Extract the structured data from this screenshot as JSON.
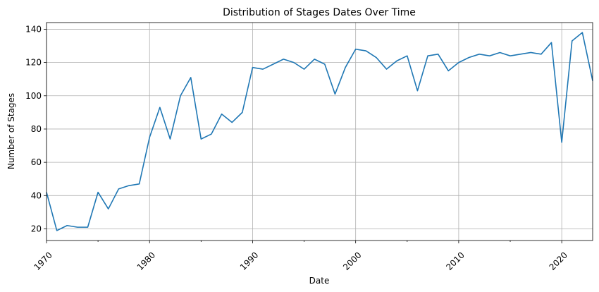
{
  "chart_data": {
    "type": "line",
    "title": "Distribution of Stages Dates Over Time",
    "xlabel": "Date",
    "ylabel": "Number of Stages",
    "xlim": [
      1970,
      2023
    ],
    "ylim": [
      13,
      144
    ],
    "grid": true,
    "x_ticks": [
      1970,
      1980,
      1990,
      2000,
      2010,
      2020
    ],
    "x_tick_labels": [
      "1970",
      "1980",
      "1990",
      "2000",
      "2010",
      "2020"
    ],
    "y_ticks": [
      20,
      40,
      60,
      80,
      100,
      120,
      140
    ],
    "y_tick_labels": [
      "20",
      "40",
      "60",
      "80",
      "100",
      "120",
      "140"
    ],
    "line_color": "#1f77b4",
    "series": [
      {
        "x": [
          1970,
          1971,
          1972,
          1973,
          1974,
          1975,
          1976,
          1977,
          1978,
          1979,
          1980,
          1981,
          1982,
          1983,
          1984,
          1985,
          1986,
          1987,
          1988,
          1989,
          1990,
          1991,
          1992,
          1993,
          1994,
          1995,
          1996,
          1997,
          1998,
          1999,
          2000,
          2001,
          2002,
          2003,
          2004,
          2005,
          2006,
          2007,
          2008,
          2009,
          2010,
          2011,
          2012,
          2013,
          2014,
          2015,
          2016,
          2017,
          2018,
          2019,
          2020,
          2021,
          2022,
          2023
        ],
        "values": [
          42,
          19,
          22,
          21,
          21,
          42,
          32,
          44,
          46,
          47,
          75,
          93,
          74,
          100,
          111,
          74,
          77,
          89,
          84,
          90,
          117,
          116,
          119,
          122,
          120,
          116,
          122,
          119,
          101,
          117,
          128,
          127,
          123,
          116,
          121,
          124,
          103,
          124,
          125,
          115,
          120,
          123,
          125,
          124,
          126,
          124,
          125,
          126,
          125,
          132,
          72,
          133,
          138,
          109
        ]
      }
    ]
  }
}
